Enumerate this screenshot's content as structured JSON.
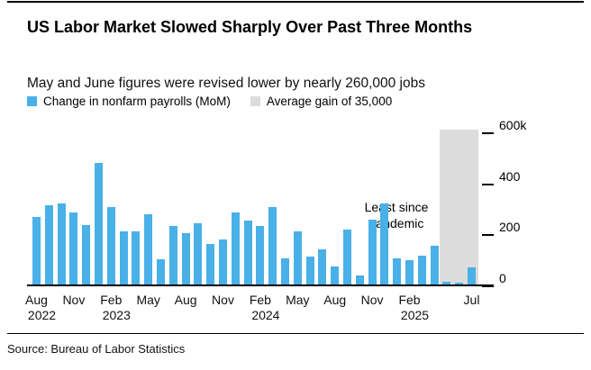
{
  "chart_data": {
    "type": "bar",
    "title": "US Labor Market Slowed Sharply Over Past Three Months",
    "subtitle": "May and June figures were revised lower by nearly 260,000 jobs",
    "source": "Source: Bureau of Labor Statistics",
    "legend_position": "top",
    "grid": false,
    "bar_color": "#49B0E8",
    "legend": [
      {
        "label": "Change in nonfarm payrolls (MoM)",
        "color": "#49B0E8"
      },
      {
        "label": "Average gain of 35,000",
        "color": "#DCDCDC"
      }
    ],
    "ylim": [
      0,
      600
    ],
    "y_unit": "thousands of jobs",
    "y_ticks": [
      {
        "value": 0,
        "label": "0"
      },
      {
        "value": 200,
        "label": "200"
      },
      {
        "value": 400,
        "label": "400"
      },
      {
        "value": 600,
        "label": "600k"
      }
    ],
    "categories": [
      "Aug 2022",
      "Sep 2022",
      "Oct 2022",
      "Nov 2022",
      "Dec 2022",
      "Jan 2023",
      "Feb 2023",
      "Mar 2023",
      "Apr 2023",
      "May 2023",
      "Jun 2023",
      "Jul 2023",
      "Aug 2023",
      "Sep 2023",
      "Oct 2023",
      "Nov 2023",
      "Dec 2023",
      "Jan 2024",
      "Feb 2024",
      "Mar 2024",
      "Apr 2024",
      "May 2024",
      "Jun 2024",
      "Jul 2024",
      "Aug 2024",
      "Sep 2024",
      "Oct 2024",
      "Nov 2024",
      "Dec 2024",
      "Jan 2025",
      "Feb 2025",
      "Mar 2025",
      "Apr 2025",
      "May 2025",
      "Jun 2025",
      "Jul 2025"
    ],
    "values": [
      271,
      319,
      324,
      290,
      239,
      482,
      311,
      217,
      217,
      281,
      105,
      236,
      210,
      246,
      165,
      182,
      290,
      256,
      236,
      310,
      108,
      216,
      118,
      144,
      78,
      223,
      44,
      261,
      323,
      111,
      102,
      120,
      158,
      19,
      14,
      73
    ],
    "x_ticks": [
      {
        "index": 0,
        "month": "Aug",
        "year": "2022"
      },
      {
        "index": 3,
        "month": "Nov"
      },
      {
        "index": 6,
        "month": "Feb",
        "year": "2023"
      },
      {
        "index": 9,
        "month": "May"
      },
      {
        "index": 12,
        "month": "Aug"
      },
      {
        "index": 15,
        "month": "Nov"
      },
      {
        "index": 18,
        "month": "Feb",
        "year": "2024"
      },
      {
        "index": 21,
        "month": "May"
      },
      {
        "index": 24,
        "month": "Aug"
      },
      {
        "index": 27,
        "month": "Nov"
      },
      {
        "index": 30,
        "month": "Feb",
        "year": "2025"
      },
      {
        "index": 35,
        "month": "Jul"
      }
    ],
    "annotation": "Least since pandemic",
    "highlight_band": {
      "start_index": 33,
      "end_index": 35,
      "color": "#DCDCDC"
    }
  }
}
